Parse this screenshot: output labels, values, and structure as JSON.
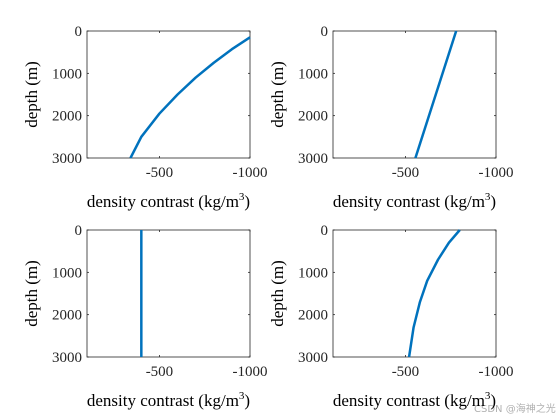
{
  "chart_data": [
    {
      "type": "line",
      "xlabel_main": "density contrast (kg/m",
      "xlabel_sup": "3",
      "xlabel_close": ")",
      "ylabel": "depth (m)",
      "xlim": [
        -100,
        -1000
      ],
      "ylim": [
        0,
        3000
      ],
      "xticks": [
        -500,
        -1000
      ],
      "xticklabels": [
        "-500",
        "-1000"
      ],
      "yticks": [
        0,
        1000,
        2000,
        3000
      ],
      "yticklabels": [
        "0",
        "1000",
        "2000",
        "3000"
      ],
      "color": "#0072BD",
      "x": [
        -1000,
        -900,
        -800,
        -700,
        -600,
        -500,
        -400,
        -340
      ],
      "y": [
        150,
        430,
        750,
        1100,
        1500,
        1950,
        2500,
        3000
      ]
    },
    {
      "type": "line",
      "xlabel_main": "density contrast (kg/m",
      "xlabel_sup": "3",
      "xlabel_close": ")",
      "ylabel": "depth (m)",
      "xlim": [
        -100,
        -1000
      ],
      "ylim": [
        0,
        3000
      ],
      "xticks": [
        -500,
        -1000
      ],
      "xticklabels": [
        "-500",
        "-1000"
      ],
      "yticks": [
        0,
        1000,
        2000,
        3000
      ],
      "yticklabels": [
        "0",
        "1000",
        "2000",
        "3000"
      ],
      "color": "#0072BD",
      "x": [
        -780,
        -555
      ],
      "y": [
        0,
        3000
      ]
    },
    {
      "type": "line",
      "xlabel_main": "density contrast (kg/m",
      "xlabel_sup": "3",
      "xlabel_close": ")",
      "ylabel": "depth (m)",
      "xlim": [
        -100,
        -1000
      ],
      "ylim": [
        0,
        3000
      ],
      "xticks": [
        -500,
        -1000
      ],
      "xticklabels": [
        "-500",
        "-1000"
      ],
      "yticks": [
        0,
        1000,
        2000,
        3000
      ],
      "yticklabels": [
        "0",
        "1000",
        "2000",
        "3000"
      ],
      "color": "#0072BD",
      "x": [
        -400,
        -400
      ],
      "y": [
        0,
        3000
      ]
    },
    {
      "type": "line",
      "xlabel_main": "density contrast (kg/m",
      "xlabel_sup": "3",
      "xlabel_close": ")",
      "ylabel": "depth (m)",
      "xlim": [
        -100,
        -1000
      ],
      "ylim": [
        0,
        3000
      ],
      "xticks": [
        -500,
        -1000
      ],
      "xticklabels": [
        "-500",
        "-1000"
      ],
      "yticks": [
        0,
        1000,
        2000,
        3000
      ],
      "yticklabels": [
        "0",
        "1000",
        "2000",
        "3000"
      ],
      "color": "#0072BD",
      "x": [
        -800,
        -740,
        -680,
        -620,
        -580,
        -545,
        -520
      ],
      "y": [
        0,
        300,
        700,
        1200,
        1700,
        2300,
        3000
      ]
    }
  ],
  "watermark": "CSDN @海神之光"
}
